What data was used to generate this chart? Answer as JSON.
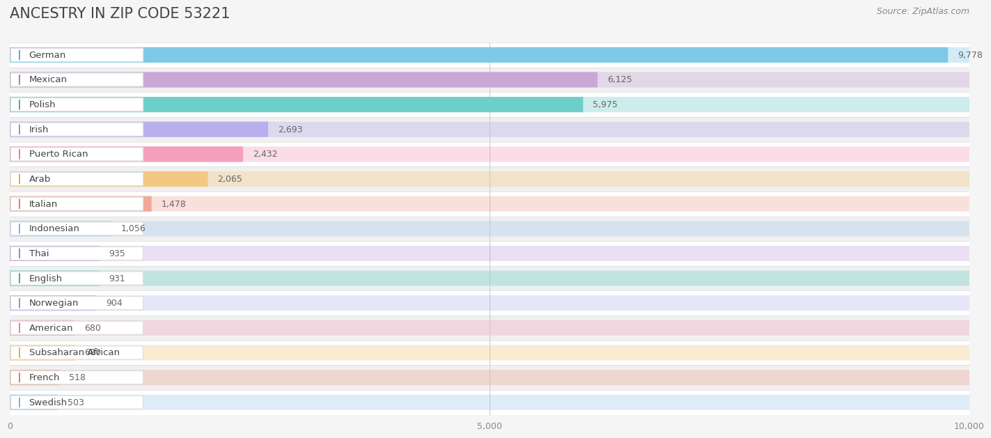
{
  "title": "ANCESTRY IN ZIP CODE 53221",
  "source": "Source: ZipAtlas.com",
  "categories": [
    "German",
    "Mexican",
    "Polish",
    "Irish",
    "Puerto Rican",
    "Arab",
    "Italian",
    "Indonesian",
    "Thai",
    "English",
    "Norwegian",
    "American",
    "Subsaharan African",
    "French",
    "Swedish"
  ],
  "values": [
    9778,
    6125,
    5975,
    2693,
    2432,
    2065,
    1478,
    1056,
    935,
    931,
    904,
    680,
    680,
    518,
    503
  ],
  "bar_colors": [
    "#7EC8E8",
    "#C9A8D8",
    "#6ECEC8",
    "#B8B0EC",
    "#F4A0BC",
    "#F5C882",
    "#F0A898",
    "#A8C8EC",
    "#C8A8DC",
    "#6ECEC0",
    "#B8B8F0",
    "#F5A8C0",
    "#F5C882",
    "#F0A898",
    "#A8C8EC"
  ],
  "dot_colors": [
    "#5AACD8",
    "#A878C0",
    "#40B0A8",
    "#9090DC",
    "#F07898",
    "#E8A840",
    "#E07870",
    "#80B0E0",
    "#A080C8",
    "#40A898",
    "#9090DC",
    "#F07898",
    "#E8A840",
    "#E07870",
    "#80B0E0"
  ],
  "xlim": [
    0,
    10000
  ],
  "xticks": [
    0,
    5000,
    10000
  ],
  "xticklabels": [
    "0",
    "5,000",
    "10,000"
  ],
  "background_color": "#f5f5f5",
  "row_color_even": "#ffffff",
  "row_color_odd": "#f0f0f0",
  "title_fontsize": 15,
  "source_fontsize": 9
}
